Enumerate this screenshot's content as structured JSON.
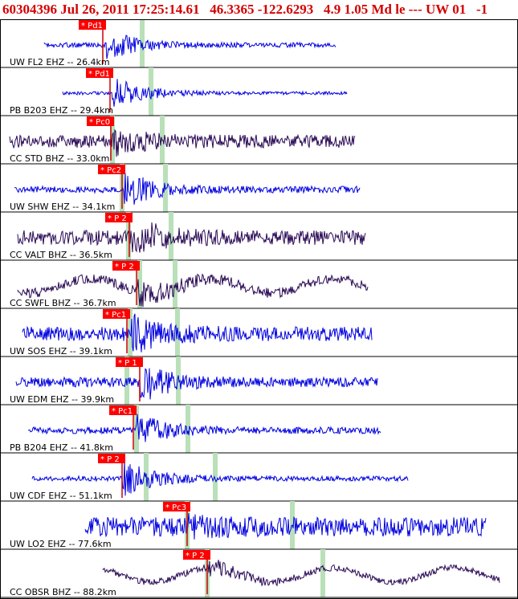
{
  "header": {
    "title": "60304396 Jul 26, 2011 17:25:14.61   46.3365 -122.6293   4.9 1.05 Md le --- UW 01   -1"
  },
  "colors": {
    "header_text": "#d40000",
    "pick_box": "#ff0000",
    "pick_line": "#cc0000",
    "marker": "#b9e0b9",
    "blue_trace": "#0000e0",
    "purple_trace": "#2a0a55"
  },
  "traces": [
    {
      "label": "UW FL2 EHZ -- 26.4km",
      "pick": "* Pd1",
      "color": "blue_trace"
    },
    {
      "label": "PB B203 EHZ -- 29.4km",
      "pick": "* Pd1",
      "color": "blue_trace"
    },
    {
      "label": "CC STD BHZ -- 33.0km",
      "pick": "* Pc0",
      "color": "purple_trace"
    },
    {
      "label": "UW SHW EHZ -- 34.1km",
      "pick": "* Pc2",
      "color": "blue_trace"
    },
    {
      "label": "CC VALT BHZ -- 36.5km",
      "pick": "* P 2",
      "color": "purple_trace"
    },
    {
      "label": "CC SWFL BHZ -- 36.7km",
      "pick": "* P 2",
      "color": "purple_trace"
    },
    {
      "label": "UW SOS EHZ -- 39.1km",
      "pick": "* Pc1",
      "color": "blue_trace"
    },
    {
      "label": "UW EDM EHZ -- 39.9km",
      "pick": "* P 1",
      "color": "blue_trace"
    },
    {
      "label": "PB B204 EHZ -- 41.8km",
      "pick": "* Pc1",
      "color": "blue_trace"
    },
    {
      "label": "UW CDF EHZ -- 51.1km",
      "pick": "* P 2",
      "color": "blue_trace"
    },
    {
      "label": "UW LO2 EHZ -- 77.6km",
      "pick": "* Pc3",
      "color": "blue_trace"
    },
    {
      "label": "CC OBSR BHZ -- 88.2km",
      "pick": "* P 2",
      "color": "purple_trace"
    }
  ]
}
